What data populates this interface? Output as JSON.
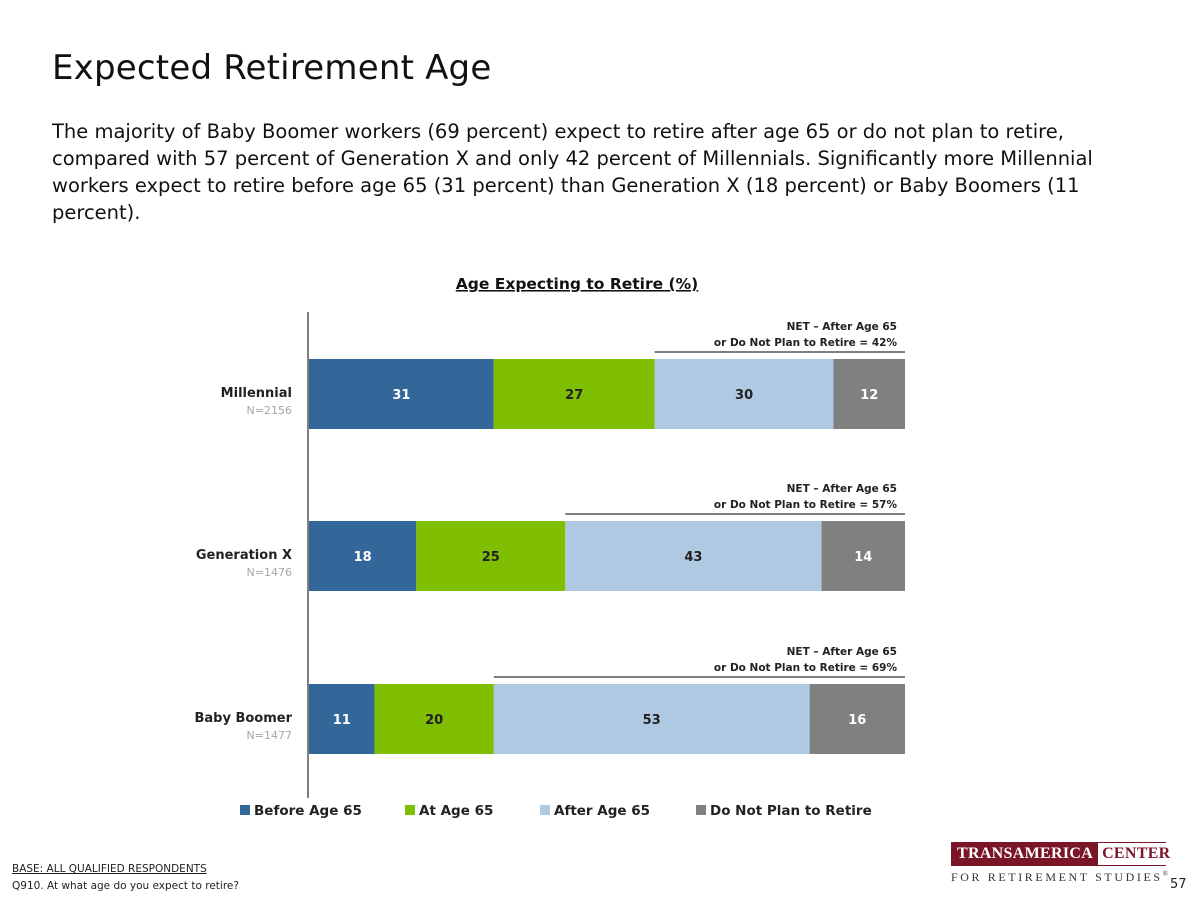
{
  "page": {
    "title": "Expected Retirement Age",
    "summary": "The majority of Baby Boomer workers (69 percent) expect to retire after age 65 or do not plan to retire, compared with 57 percent of Generation X and only 42 percent of Millennials. Significantly more Millennial workers expect to retire before age 65 (31 percent) than Generation X (18 percent) or Baby Boomers (11 percent).",
    "base_note": "BASE: ALL QUALIFIED RESPONDENTS",
    "question_note": "Q910. At what age do you expect to retire?",
    "page_number": "57"
  },
  "logo": {
    "line1_left": "TRANSAMERICA",
    "line1_right": "CENTER",
    "line2": "FOR RETIREMENT STUDIES",
    "mark": "®"
  },
  "chart_data": {
    "type": "bar",
    "orientation": "horizontal",
    "stacked": true,
    "title": "Age Expecting to Retire (%)",
    "categories": [
      "Millennial",
      "Generation X",
      "Baby Boomer"
    ],
    "sample_sizes": [
      "N=2156",
      "N=1476",
      "N=1477"
    ],
    "series": [
      {
        "name": "Before Age 65",
        "color": "#336699",
        "label_color": "#ffffff",
        "values": [
          31,
          18,
          11
        ]
      },
      {
        "name": "At Age 65",
        "color": "#7fbe00",
        "label_color": "#222222",
        "values": [
          27,
          25,
          20
        ]
      },
      {
        "name": "After Age 65",
        "color": "#afc9e3",
        "label_color": "#222222",
        "values": [
          30,
          43,
          53
        ]
      },
      {
        "name": "Do Not Plan to Retire",
        "color": "#808080",
        "label_color": "#ffffff",
        "values": [
          12,
          14,
          16
        ]
      }
    ],
    "net_annotations": [
      {
        "line1": "NET – After Age 65",
        "line2": "or Do Not Plan to Retire = 42%",
        "value": 42
      },
      {
        "line1": "NET – After Age 65",
        "line2": "or Do Not Plan to Retire = 57%",
        "value": 57
      },
      {
        "line1": "NET – After Age 65",
        "line2": "or Do Not Plan to Retire = 69%",
        "value": 69
      }
    ],
    "xlim": [
      0,
      100
    ],
    "grid": false,
    "legend_position": "bottom"
  }
}
